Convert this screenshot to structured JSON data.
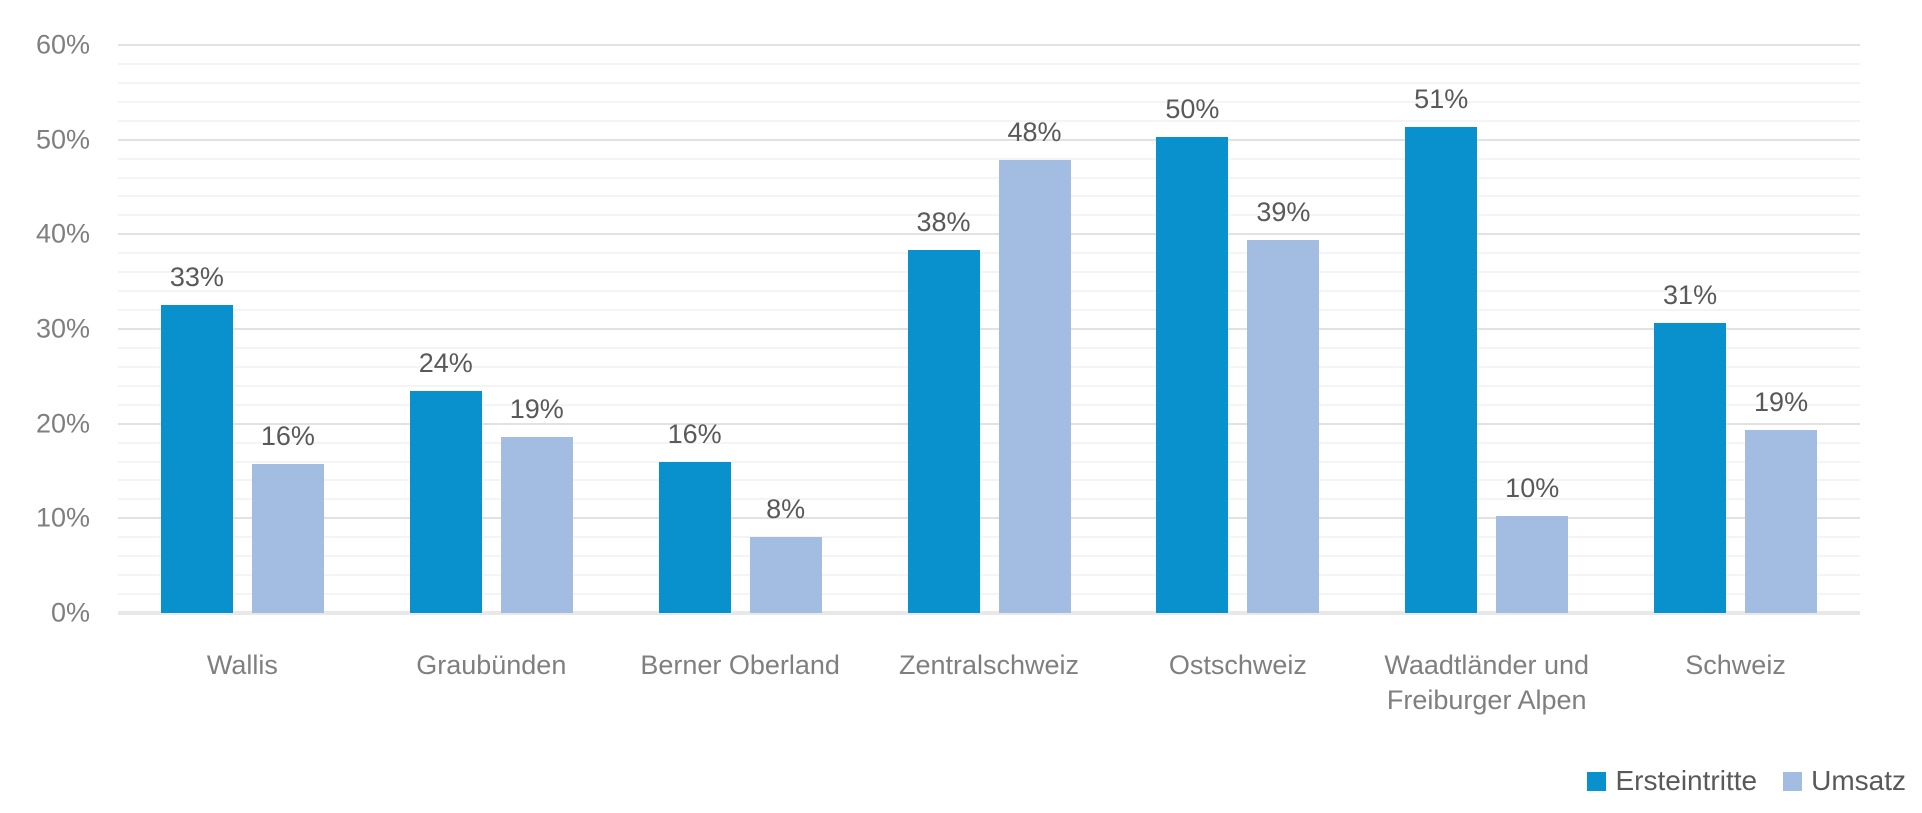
{
  "chart_data": {
    "type": "bar",
    "title": "",
    "categories": [
      "Wallis",
      "Graubünden",
      "Berner Oberland",
      "Zentralschweiz",
      "Ostschweiz",
      "Waadtländer und Freiburger Alpen",
      "Schweiz"
    ],
    "series": [
      {
        "name": "Ersteintritte",
        "color": "#0991CE",
        "values": [
          32.5,
          23.5,
          16.0,
          38.3,
          50.3,
          51.3,
          30.6
        ],
        "labels": [
          "33%",
          "24%",
          "16%",
          "38%",
          "50%",
          "51%",
          "31%"
        ]
      },
      {
        "name": "Umsatz",
        "color": "#A3BDE2",
        "values": [
          15.7,
          18.6,
          8.0,
          47.9,
          39.4,
          10.2,
          19.3
        ],
        "labels": [
          "16%",
          "19%",
          "8%",
          "48%",
          "39%",
          "10%",
          "19%"
        ]
      }
    ],
    "y_axis": {
      "min": 0,
      "max": 60,
      "major_step": 10,
      "minor_step": 2,
      "tick_labels": [
        "0%",
        "10%",
        "20%",
        "30%",
        "40%",
        "50%",
        "60%"
      ]
    },
    "legend": {
      "position": "bottom-right",
      "entries": [
        "Ersteintritte",
        "Umsatz"
      ]
    },
    "grid": {
      "major_color": "#e2e2e2",
      "minor_color": "#f4f4f4",
      "axis_color": "#e8e8e8"
    },
    "colors": {
      "data_label": "#595959",
      "tick_label": "#7f7f7f",
      "legend_label": "#595959",
      "background": "#ffffff"
    }
  }
}
